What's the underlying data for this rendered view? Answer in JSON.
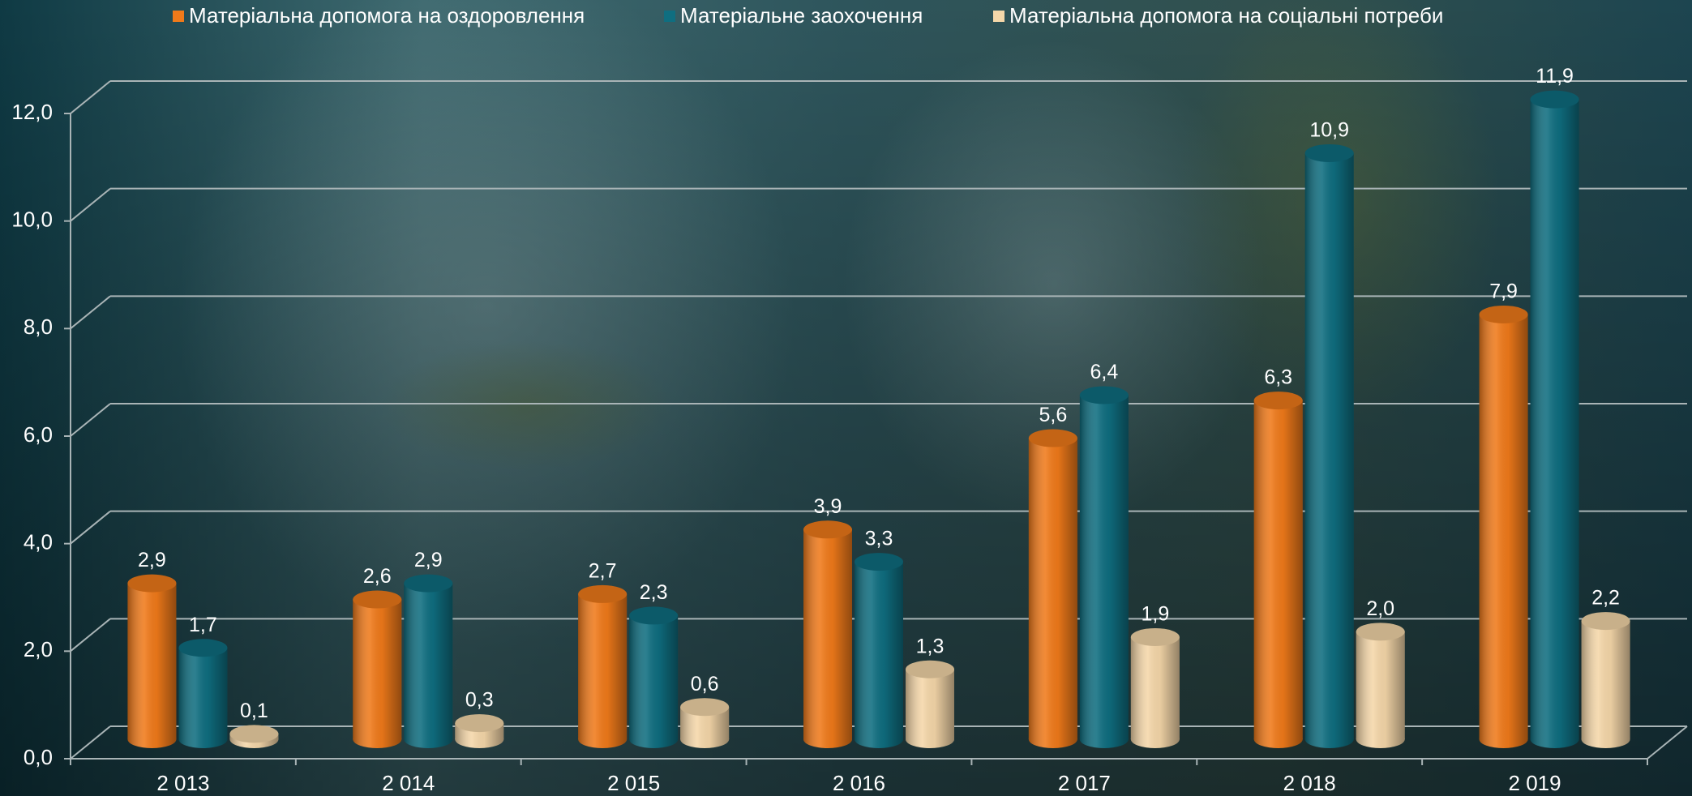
{
  "chart_data": {
    "type": "bar",
    "categories": [
      "2 013",
      "2 014",
      "2 015",
      "2 016",
      "2 017",
      "2 018",
      "2 019"
    ],
    "series": [
      {
        "name": "Матеріальна допомога на оздоровлення",
        "color": "#f07a1a",
        "values": [
          2.9,
          2.6,
          2.7,
          3.9,
          5.6,
          6.3,
          7.9
        ],
        "value_labels": [
          "2,9",
          "2,6",
          "2,7",
          "3,9",
          "5,6",
          "6,3",
          "7,9"
        ]
      },
      {
        "name": "Матеріальне заохочення",
        "color": "#0f6e80",
        "values": [
          1.7,
          2.9,
          2.3,
          3.3,
          6.4,
          10.9,
          11.9
        ],
        "value_labels": [
          "1,7",
          "2,9",
          "2,3",
          "3,3",
          "6,4",
          "10,9",
          "11,9"
        ]
      },
      {
        "name": "Матеріальна допомога на соціальні потреби",
        "color": "#f5d7a9",
        "values": [
          0.1,
          0.3,
          0.6,
          1.3,
          1.9,
          2.0,
          2.2
        ],
        "value_labels": [
          "0,1",
          "0,3",
          "0,6",
          "1,3",
          "1,9",
          "2,0",
          "2,2"
        ]
      }
    ],
    "ylim": [
      0,
      12
    ],
    "yticks": [
      {
        "value": 0,
        "label": "0,0"
      },
      {
        "value": 2,
        "label": "2,0"
      },
      {
        "value": 4,
        "label": "4,0"
      },
      {
        "value": 6,
        "label": "6,0"
      },
      {
        "value": 8,
        "label": "8,0"
      },
      {
        "value": 10,
        "label": "10,0"
      },
      {
        "value": 12,
        "label": "12,0"
      }
    ],
    "grid": true,
    "legend": "top"
  }
}
